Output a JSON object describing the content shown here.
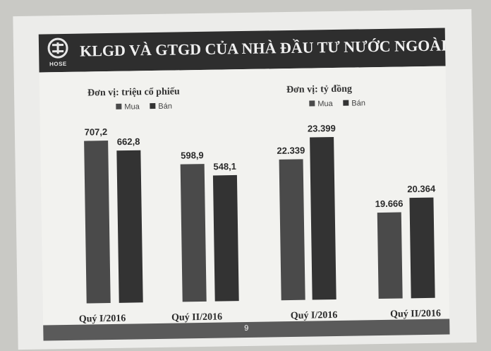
{
  "header": {
    "title": "KLGD VÀ GTGD CỦA NHÀ ĐẦU TƯ NƯỚC NGOÀI",
    "logo_text": "HOSE"
  },
  "footer": {
    "page_number": "9"
  },
  "colors": {
    "header_band": "#2e2e2e",
    "footer_band": "#5a5a5a",
    "buy_bar": "#4a4a4a",
    "sell_bar": "#333333"
  },
  "chart_data": [
    {
      "type": "bar",
      "title": "Đơn vị: triệu cổ phiếu",
      "categories": [
        "Quý I/2016",
        "Quý II/2016"
      ],
      "series": [
        {
          "name": "Mua",
          "values": [
            707.2,
            598.9
          ],
          "labels": [
            "707,2",
            "598,9"
          ]
        },
        {
          "name": "Bán",
          "values": [
            662.8,
            548.1
          ],
          "labels": [
            "662,8",
            "548,1"
          ]
        }
      ],
      "ylim": [
        0,
        707.2
      ],
      "legend": "top",
      "grid": false
    },
    {
      "type": "bar",
      "title": "Đơn vị: tỷ đồng",
      "categories": [
        "Quý I/2016",
        "Quý II/2016"
      ],
      "series": [
        {
          "name": "Mua",
          "values": [
            22339,
            19666
          ],
          "labels": [
            "22.339",
            "19.666"
          ]
        },
        {
          "name": "Bán",
          "values": [
            23399,
            20364
          ],
          "labels": [
            "23.399",
            "20.364"
          ]
        }
      ],
      "ylim": [
        15450,
        23399
      ],
      "legend": "top",
      "grid": false
    }
  ]
}
